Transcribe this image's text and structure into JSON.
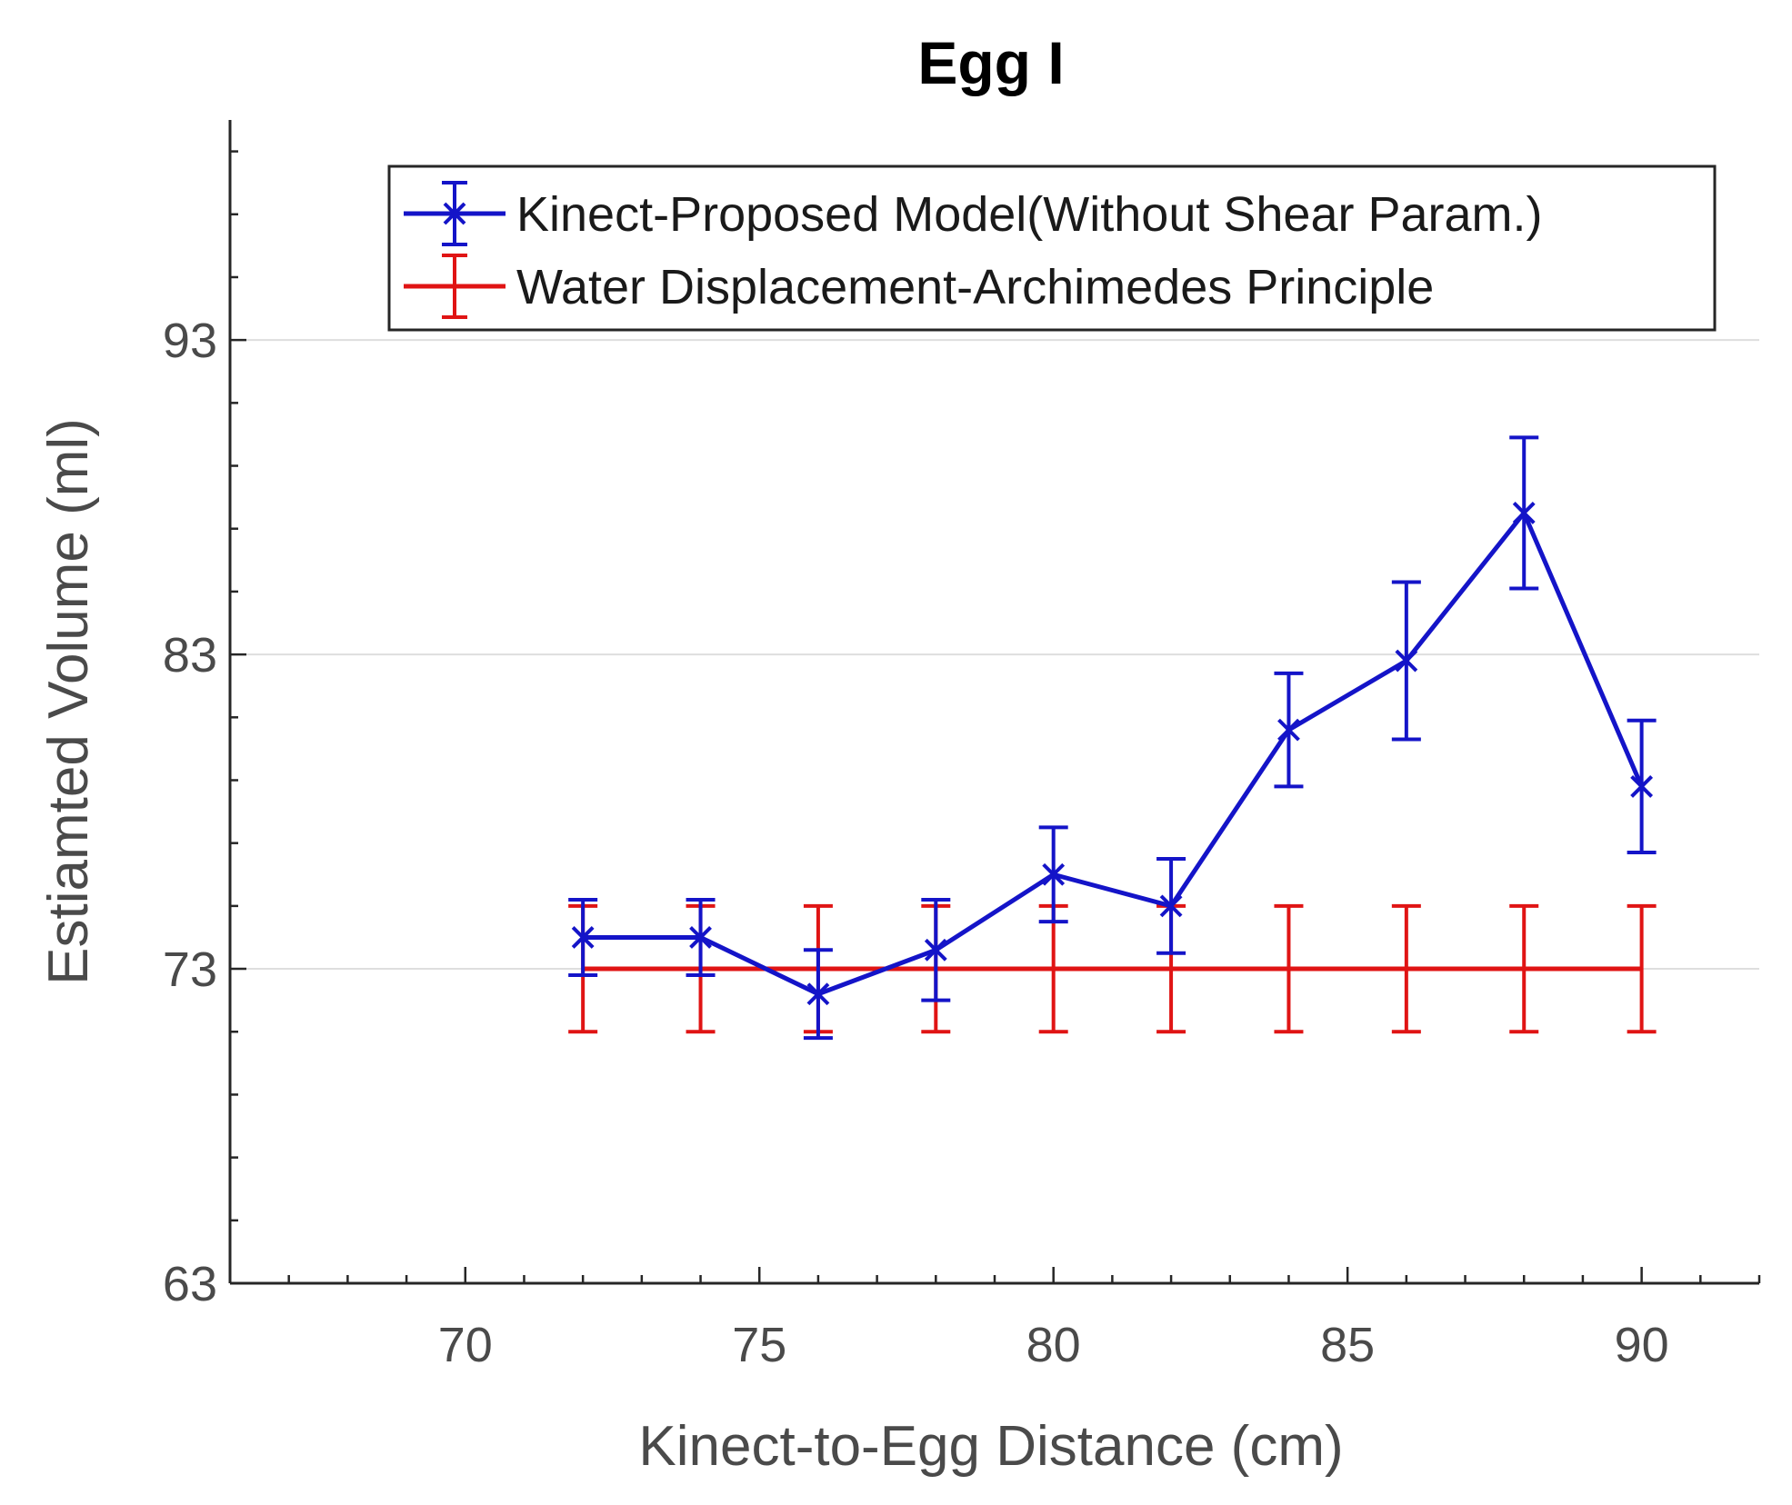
{
  "chart_data": {
    "type": "line",
    "title": "Egg I",
    "xlabel": "Kinect-to-Egg Distance (cm)",
    "ylabel": "Estiamted Volume (ml)",
    "xlim": [
      66,
      92
    ],
    "ylim": [
      63,
      100
    ],
    "xticks": [
      70,
      75,
      80,
      85,
      90
    ],
    "yticks": [
      63,
      73,
      83,
      93
    ],
    "grid": "horizontal",
    "legend_position": "top-right",
    "series": [
      {
        "name": "Kinect-Proposed Model(Without Shear Param.)",
        "color": "#1414c8",
        "marker": "x",
        "x": [
          72,
          74,
          76,
          78,
          80,
          82,
          84,
          86,
          88,
          90
        ],
        "y": [
          74.0,
          74.0,
          72.2,
          73.6,
          76.0,
          75.0,
          80.6,
          82.8,
          87.5,
          78.8
        ],
        "err": [
          1.2,
          1.2,
          1.4,
          1.6,
          1.5,
          1.5,
          1.8,
          2.5,
          2.4,
          2.1
        ]
      },
      {
        "name": "Water Displacement-Archimedes Principle",
        "color": "#e01414",
        "marker": "none",
        "x": [
          72,
          74,
          76,
          78,
          80,
          82,
          84,
          86,
          88,
          90
        ],
        "y": [
          73,
          73,
          73,
          73,
          73,
          73,
          73,
          73,
          73,
          73
        ],
        "err": [
          2,
          2,
          2,
          2,
          2,
          2,
          2,
          2,
          2,
          2
        ]
      }
    ]
  }
}
